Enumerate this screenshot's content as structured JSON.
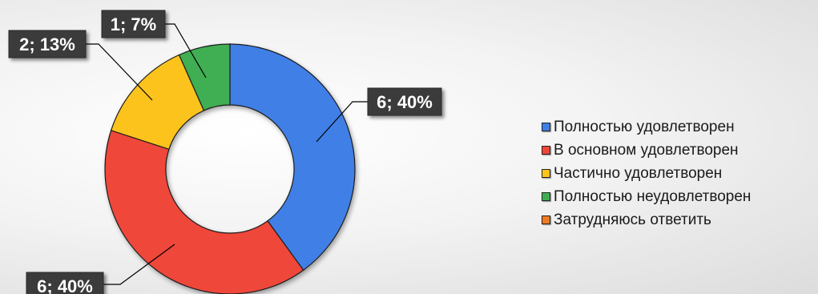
{
  "chart_data": {
    "type": "donut",
    "title": "",
    "series": [
      {
        "categories": [
          "Полностью удовлетворен",
          "В основном удовлетворен",
          "Частично удовлетворен",
          "Полностью неудовлетворен",
          "Затрудняюсь ответить"
        ],
        "values": [
          6,
          6,
          2,
          1,
          0
        ],
        "percent": [
          40,
          40,
          13,
          7,
          0
        ],
        "data_labels": [
          "6; 40%",
          "6; 40%",
          "2; 13%",
          "1; 7%",
          ""
        ],
        "colors": [
          "#3f7fe6",
          "#f0463a",
          "#fcc31b",
          "#3fae52",
          "#f07a22"
        ]
      }
    ],
    "legend_position": "right"
  }
}
